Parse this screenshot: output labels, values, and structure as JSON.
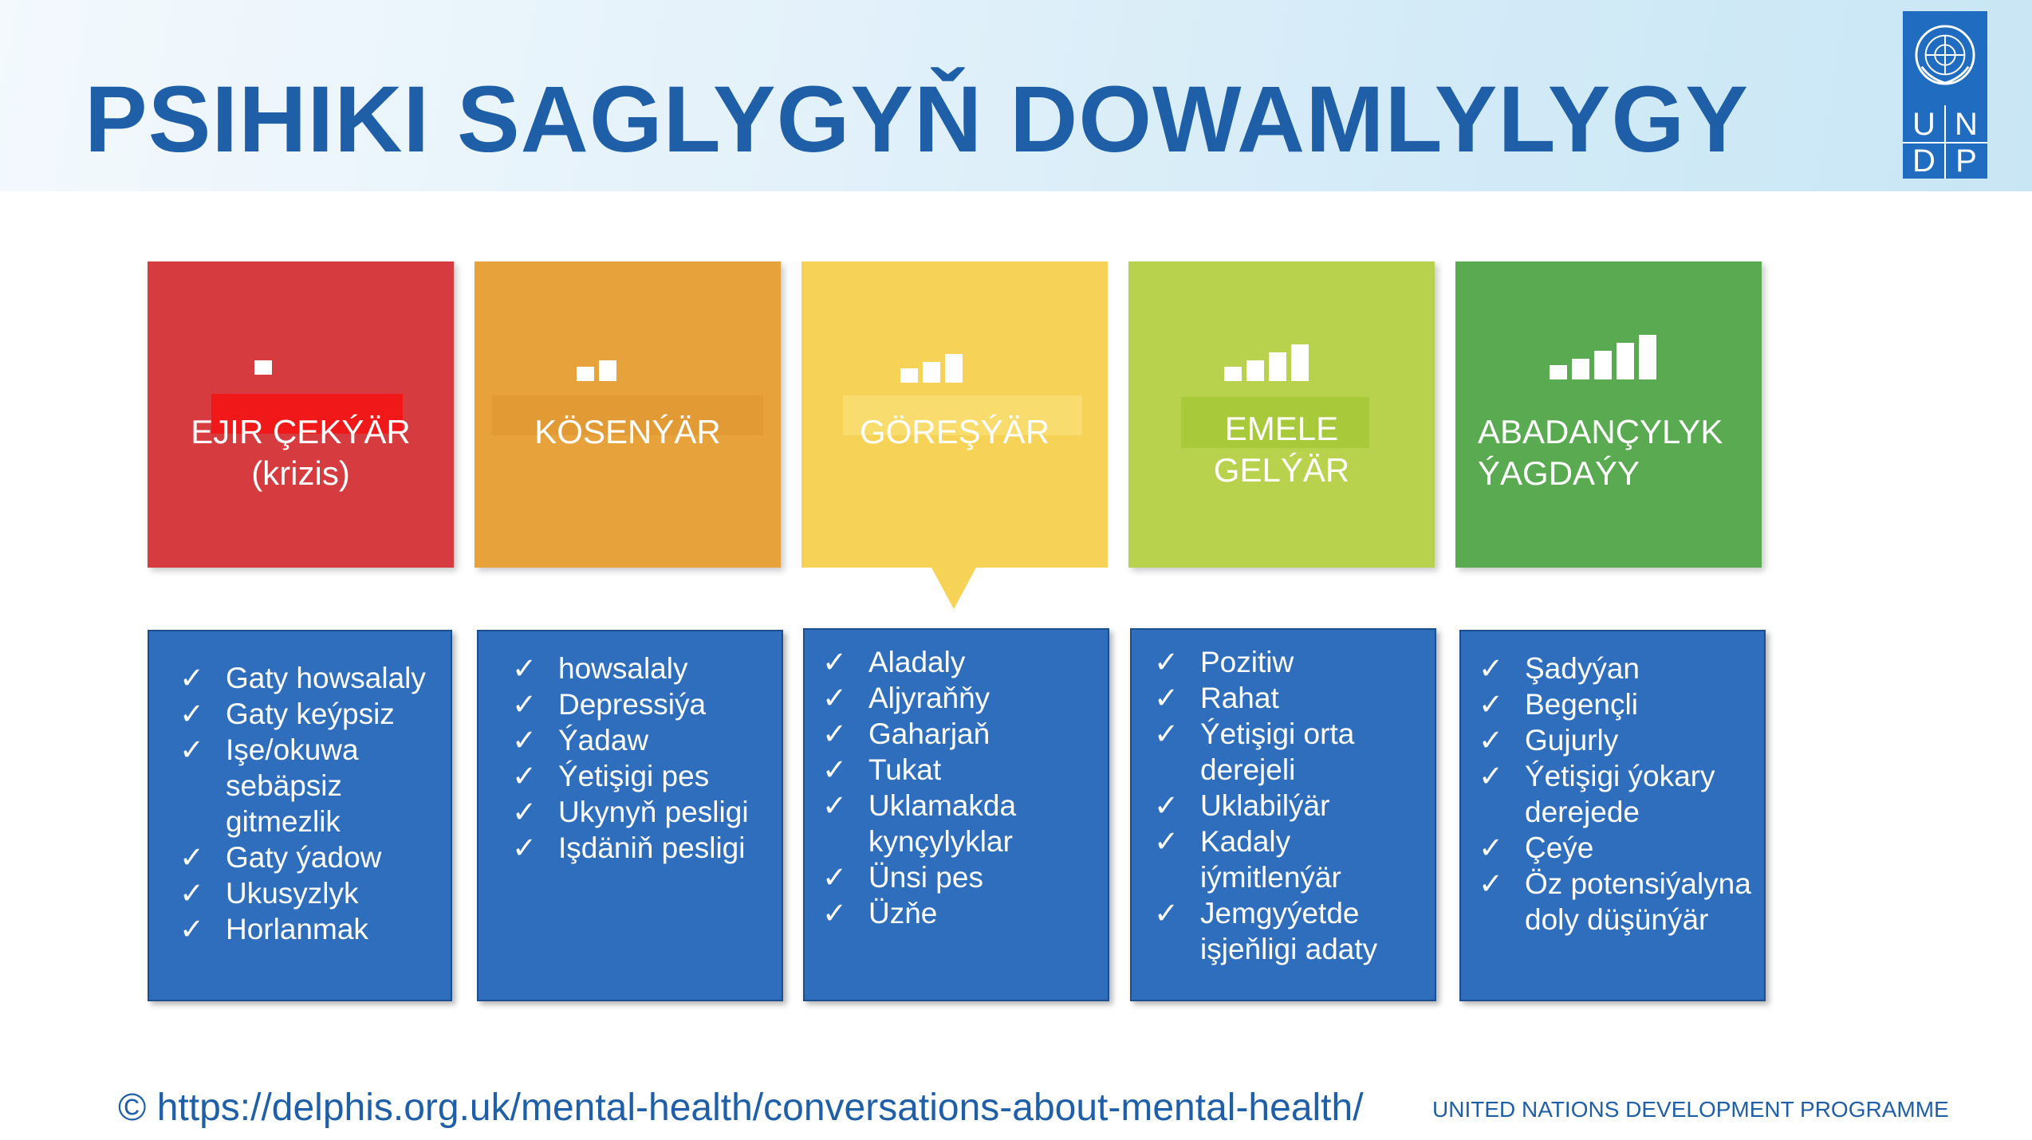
{
  "header": {
    "title": "PSIHIKI SAGLYGYŇ DOWAMLYLYGY"
  },
  "logo": {
    "letters": [
      "U",
      "N",
      "D",
      "P"
    ]
  },
  "stages": [
    {
      "label_lines": [
        "EJIR ÇEKÝÄR",
        "(krizis)"
      ],
      "color": "#d63c3f",
      "bars": 1,
      "items": [
        "Gaty howsalaly",
        "Gaty keýpsiz",
        "Işe/okuwa sebäpsiz gitmezlik",
        "Gaty ýadow",
        "Ukusyzlyk",
        "Horlanmak"
      ]
    },
    {
      "label_lines": [
        "KÖSENÝÄR"
      ],
      "color": "#e8a23c",
      "bars": 2,
      "items": [
        "howsalaly",
        "Depressiýa",
        "Ýadaw",
        "Ýetişigi pes",
        "Ukynyň pesligi",
        "Işdäniň pesligi"
      ]
    },
    {
      "label_lines": [
        "GÖREŞÝÄR"
      ],
      "color": "#f6d256",
      "bars": 3,
      "items": [
        "Aladaly",
        "Aljyraňňy",
        "Gaharjaň",
        "Tukat",
        "Uklamakda kynçylyklar",
        "Ünsi pes",
        "Üzňe"
      ]
    },
    {
      "label_lines": [
        "EMELE",
        "GELÝÄR"
      ],
      "color": "#b9d24e",
      "bars": 4,
      "items": [
        "Pozitiw",
        "Rahat",
        "Ýetişigi orta derejeli",
        "Uklabilýär",
        "Kadaly iýmitlenýär",
        "Jemgyýetde işjeňligi adaty"
      ]
    },
    {
      "label_lines": [
        "ABADANÇYLYK",
        "ÝAGDAÝY"
      ],
      "color": "#5aaa51",
      "bars": 5,
      "items": [
        "Şadyýan",
        "Begençli",
        "Gujurly",
        "Ýetişigi ýokary derejede",
        "Çeýe",
        "Öz potensiýalyna doly düşünýär"
      ]
    }
  ],
  "check_symbol": "✓",
  "panel_color": "#2f6ebd",
  "footer": {
    "source": "© https://delphis.org.uk/mental-health/conversations-about-mental-health/",
    "org": "UNITED NATIONS DEVELOPMENT PROGRAMME"
  }
}
